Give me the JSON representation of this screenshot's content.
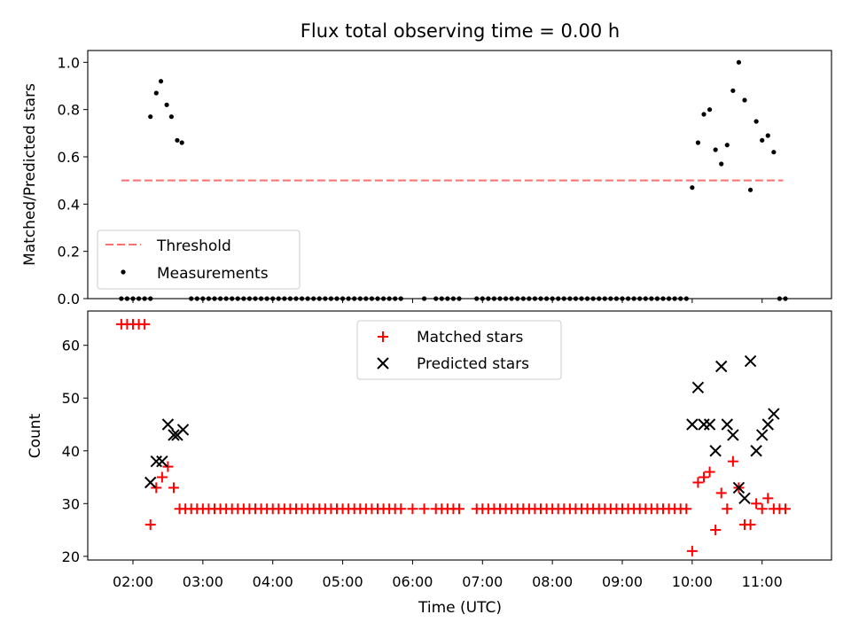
{
  "title": "Flux total observing time = 0.00 h",
  "chart_data": [
    {
      "type": "scatter",
      "ylabel": "Matched/Predicted stars",
      "ylim": [
        0,
        1.05
      ],
      "yticks": [
        "0.0",
        "0.2",
        "0.4",
        "0.6",
        "0.8",
        "1.0"
      ],
      "threshold": {
        "name": "Threshold",
        "value": 0.5,
        "x_start": "01:50",
        "x_end": "11:18",
        "color": "#ff6f6f"
      },
      "legend": {
        "placement": "lower-left",
        "entries": [
          "Threshold",
          "Measurements"
        ]
      },
      "series": [
        {
          "name": "Measurements",
          "color": "#000000",
          "points": [
            [
              "02:15",
              0.77
            ],
            [
              "02:20",
              0.87
            ],
            [
              "02:24",
              0.92
            ],
            [
              "02:29",
              0.82
            ],
            [
              "02:33",
              0.77
            ],
            [
              "02:38",
              0.67
            ],
            [
              "02:42",
              0.66
            ],
            [
              "10:00",
              0.47
            ],
            [
              "10:05",
              0.66
            ],
            [
              "10:10",
              0.78
            ],
            [
              "10:15",
              0.8
            ],
            [
              "10:20",
              0.63
            ],
            [
              "10:25",
              0.57
            ],
            [
              "10:30",
              0.65
            ],
            [
              "10:35",
              0.88
            ],
            [
              "10:40",
              1.0
            ],
            [
              "10:45",
              0.84
            ],
            [
              "10:50",
              0.46
            ],
            [
              "10:55",
              0.75
            ],
            [
              "11:00",
              0.67
            ],
            [
              "11:05",
              0.69
            ],
            [
              "11:10",
              0.62
            ]
          ],
          "zero_segments": [
            [
              "01:50",
              "02:15",
              5
            ],
            [
              "02:50",
              "05:50",
              5
            ],
            [
              "06:10",
              "06:20",
              10
            ],
            [
              "06:25",
              "06:35",
              5
            ],
            [
              "06:40",
              "06:40",
              5
            ],
            [
              "06:55",
              "09:55",
              5
            ],
            [
              "11:15",
              "11:20",
              5
            ]
          ]
        }
      ]
    },
    {
      "type": "scatter",
      "xlabel": "Time (UTC)",
      "ylabel": "Count",
      "ylim": [
        19.3,
        66.5
      ],
      "yticks": [
        "20",
        "30",
        "40",
        "50",
        "60"
      ],
      "xticks": [
        "02:00",
        "03:00",
        "04:00",
        "05:00",
        "06:00",
        "07:00",
        "08:00",
        "09:00",
        "10:00",
        "11:00"
      ],
      "legend": {
        "placement": "upper-center",
        "entries": [
          "Matched stars",
          "Predicted stars"
        ]
      },
      "series": [
        {
          "name": "Matched stars",
          "marker": "plus",
          "color": "#ff0000",
          "points": [
            [
              "01:50",
              64
            ],
            [
              "01:55",
              64
            ],
            [
              "02:00",
              64
            ],
            [
              "02:05",
              64
            ],
            [
              "02:10",
              64
            ],
            [
              "02:15",
              26
            ],
            [
              "02:20",
              33
            ],
            [
              "02:25",
              35
            ],
            [
              "02:30",
              37
            ],
            [
              "02:35",
              33
            ],
            [
              "10:00",
              21
            ],
            [
              "10:05",
              34
            ],
            [
              "10:10",
              35
            ],
            [
              "10:15",
              36
            ],
            [
              "10:20",
              25
            ],
            [
              "10:25",
              32
            ],
            [
              "10:30",
              29
            ],
            [
              "10:35",
              38
            ],
            [
              "10:40",
              33
            ],
            [
              "10:45",
              26
            ],
            [
              "10:50",
              26
            ],
            [
              "10:55",
              30
            ],
            [
              "11:00",
              29
            ],
            [
              "11:05",
              31
            ],
            [
              "11:10",
              29
            ],
            [
              "11:15",
              29
            ],
            [
              "11:20",
              29
            ]
          ],
          "constant_segments": [
            [
              "02:40",
              "05:50",
              5,
              29
            ],
            [
              "06:00",
              "06:00",
              5,
              29
            ],
            [
              "06:10",
              "06:20",
              10,
              29
            ],
            [
              "06:25",
              "06:35",
              5,
              29
            ],
            [
              "06:40",
              "06:40",
              5,
              29
            ],
            [
              "06:55",
              "09:55",
              5,
              29
            ]
          ]
        },
        {
          "name": "Predicted stars",
          "marker": "x",
          "color": "#000000",
          "points": [
            [
              "02:15",
              34
            ],
            [
              "02:20",
              38
            ],
            [
              "02:25",
              38
            ],
            [
              "02:30",
              45
            ],
            [
              "02:35",
              43
            ],
            [
              "02:38",
              43
            ],
            [
              "02:43",
              44
            ],
            [
              "10:00",
              45
            ],
            [
              "10:05",
              52
            ],
            [
              "10:10",
              45
            ],
            [
              "10:15",
              45
            ],
            [
              "10:20",
              40
            ],
            [
              "10:25",
              56
            ],
            [
              "10:30",
              45
            ],
            [
              "10:35",
              43
            ],
            [
              "10:40",
              33
            ],
            [
              "10:45",
              31
            ],
            [
              "10:50",
              57
            ],
            [
              "10:55",
              40
            ],
            [
              "11:00",
              43
            ],
            [
              "11:05",
              45
            ],
            [
              "11:10",
              47
            ]
          ]
        }
      ]
    }
  ]
}
